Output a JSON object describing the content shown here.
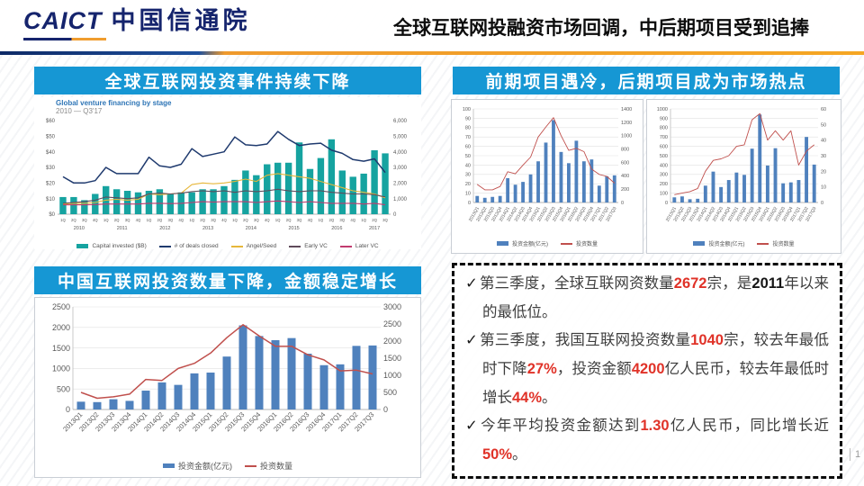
{
  "header": {
    "logo_latin": "CAICT",
    "logo_cn": "中国信通院",
    "title": "全球互联网投融资市场回调，中后期项目受到追捧"
  },
  "panels": {
    "top_left": {
      "banner": "全球互联网投资事件持续下降"
    },
    "top_right": {
      "banner": "前期项目遇冷，后期项目成为市场热点"
    },
    "bottom_left": {
      "banner": "中国互联网投资数量下降，金额稳定增长"
    }
  },
  "colors": {
    "banner_blue": "#1697d4",
    "teal_bar": "#16a3a0",
    "navy_line": "#1f3a6e",
    "yellow_line": "#e6b73a",
    "early_vc_line": "#5f4a5a",
    "later_vc_line": "#c13a6e",
    "excel_bar_blue": "#4f81bd",
    "excel_line_red": "#c0504d",
    "highlight_red": "#e03228"
  },
  "notes": {
    "bullets": [
      {
        "parts": [
          {
            "text": "第三季度，全球互联网资数量"
          },
          {
            "text": "2672",
            "style": "red"
          },
          {
            "text": "宗，是"
          },
          {
            "text": "2011",
            "style": "bold"
          },
          {
            "text": "年以来的最低位。"
          }
        ]
      },
      {
        "parts": [
          {
            "text": "第三季度，我国互联网投资数量"
          },
          {
            "text": "1040",
            "style": "red"
          },
          {
            "text": "宗，较去年最低时下降"
          },
          {
            "text": "27%",
            "style": "red"
          },
          {
            "text": "，投资金额"
          },
          {
            "text": "4200",
            "style": "red"
          },
          {
            "text": "亿人民币，较去年最低时增长"
          },
          {
            "text": "44%",
            "style": "red"
          },
          {
            "text": "。"
          }
        ]
      },
      {
        "parts": [
          {
            "text": "今年平均投资金额达到"
          },
          {
            "text": "1.30",
            "style": "red"
          },
          {
            "text": "亿人民币，同比增长近"
          },
          {
            "text": "50%",
            "style": "red"
          },
          {
            "text": "。"
          }
        ]
      }
    ]
  },
  "page_number": "1",
  "chart_data": [
    {
      "id": "global_stage",
      "type": "bar",
      "title": "Global venture financing by stage",
      "subtitle": "2010 — Q3'17",
      "categories": [
        "1Q",
        "2Q",
        "3Q",
        "4Q",
        "1Q",
        "2Q",
        "3Q",
        "4Q",
        "1Q",
        "2Q",
        "3Q",
        "4Q",
        "1Q",
        "2Q",
        "3Q",
        "4Q",
        "1Q",
        "2Q",
        "3Q",
        "4Q",
        "1Q",
        "2Q",
        "3Q",
        "4Q",
        "1Q",
        "2Q",
        "3Q",
        "4Q",
        "1Q",
        "2Q",
        "3Q"
      ],
      "years": [
        "2010",
        "2011",
        "2012",
        "2013",
        "2014",
        "2015",
        "2016",
        "2017"
      ],
      "left_axis": {
        "min": 0,
        "max": 60,
        "step": 10,
        "prefix": "$"
      },
      "right_axis": {
        "min": 0,
        "max": 6000,
        "step": 1000,
        "comma": true
      },
      "series": [
        {
          "name": "Capital invested ($B)",
          "type": "bar",
          "axis": "left",
          "color": "#16a3a0",
          "values": [
            11,
            11,
            9,
            13,
            18,
            16,
            15,
            14,
            15,
            16,
            13,
            14,
            14,
            16,
            16,
            18,
            22,
            28,
            25,
            32,
            33,
            33,
            46,
            29,
            36,
            48,
            28,
            24,
            26,
            41,
            39
          ]
        },
        {
          "name": "# of deals closed",
          "type": "line",
          "axis": "right",
          "color": "#1f3a6e",
          "values": [
            2400,
            2000,
            2000,
            2150,
            3000,
            2600,
            2600,
            2600,
            3650,
            3100,
            3000,
            3200,
            4200,
            3700,
            3850,
            4000,
            4950,
            4450,
            4400,
            4500,
            5300,
            4800,
            4400,
            4500,
            4550,
            4100,
            3900,
            3500,
            3400,
            3550,
            2672
          ]
        },
        {
          "name": "Angel/Seed",
          "type": "line",
          "axis": "right",
          "color": "#e6b73a",
          "values": [
            650,
            700,
            700,
            750,
            900,
            950,
            900,
            950,
            1300,
            1250,
            1300,
            1350,
            1900,
            2000,
            1950,
            2000,
            2100,
            2250,
            2100,
            2500,
            2600,
            2500,
            2400,
            2300,
            2100,
            1900,
            1700,
            1500,
            1400,
            1300,
            1050
          ]
        },
        {
          "name": "Early VC",
          "type": "line",
          "axis": "right",
          "color": "#5f4a5a",
          "values": [
            700,
            750,
            800,
            900,
            1100,
            1050,
            1000,
            1050,
            1300,
            1350,
            1300,
            1350,
            1450,
            1500,
            1450,
            1500,
            1400,
            1500,
            1450,
            1500,
            1600,
            1500,
            1450,
            1500,
            1500,
            1400,
            1350,
            1300,
            1300,
            1250,
            1100
          ]
        },
        {
          "name": "Later VC",
          "type": "line",
          "axis": "right",
          "color": "#c13a6e",
          "values": [
            600,
            600,
            600,
            620,
            650,
            650,
            650,
            650,
            700,
            700,
            680,
            700,
            750,
            800,
            780,
            800,
            800,
            800,
            750,
            800,
            850,
            800,
            750,
            800,
            750,
            700,
            700,
            700,
            650,
            700,
            600
          ]
        }
      ]
    },
    {
      "id": "early_stage",
      "type": "bar",
      "title": "",
      "categories": [
        "2013Q1",
        "2013Q2",
        "2013Q3",
        "2013Q4",
        "2014Q1",
        "2014Q2",
        "2014Q3",
        "2014Q4",
        "2015Q1",
        "2015Q2",
        "2015Q3",
        "2015Q4",
        "2016Q1",
        "2016Q2",
        "2016Q3",
        "2016Q4",
        "2017Q1",
        "2017Q2",
        "2017Q3"
      ],
      "left_axis": {
        "min": 0,
        "max": 100,
        "step": 10
      },
      "right_axis": {
        "min": 0,
        "max": 1400,
        "step": 200
      },
      "series": [
        {
          "name": "投资金额(亿元)",
          "type": "bar",
          "axis": "left",
          "color": "#4f81bd",
          "values": [
            7,
            5,
            6,
            7,
            26,
            19,
            22,
            30,
            44,
            64,
            88,
            54,
            42,
            66,
            44,
            46,
            18,
            28,
            29
          ]
        },
        {
          "name": "投资数量",
          "type": "line",
          "axis": "right",
          "color": "#c0504d",
          "values": [
            270,
            190,
            190,
            240,
            460,
            430,
            560,
            680,
            980,
            1130,
            1270,
            1000,
            780,
            810,
            760,
            500,
            420,
            390,
            290
          ]
        }
      ]
    },
    {
      "id": "late_stage",
      "type": "bar",
      "title": "",
      "categories": [
        "2013Q1",
        "2013Q2",
        "2013Q3",
        "2013Q4",
        "2014Q1",
        "2014Q2",
        "2014Q3",
        "2014Q4",
        "2015Q1",
        "2015Q2",
        "2015Q3",
        "2015Q4",
        "2016Q1",
        "2016Q2",
        "2016Q3",
        "2016Q4",
        "2017Q1",
        "2017Q2",
        "2017Q3"
      ],
      "left_axis": {
        "min": 0,
        "max": 1000,
        "step": 100
      },
      "right_axis": {
        "min": 0,
        "max": 60,
        "step": 10
      },
      "series": [
        {
          "name": "投资金额(亿元)",
          "type": "bar",
          "axis": "left",
          "color": "#4f81bd",
          "values": [
            55,
            65,
            35,
            40,
            180,
            330,
            165,
            240,
            320,
            295,
            575,
            940,
            395,
            580,
            205,
            215,
            240,
            700,
            405
          ]
        },
        {
          "name": "投资数量",
          "type": "line",
          "axis": "right",
          "color": "#c0504d",
          "values": [
            5,
            6,
            7,
            9,
            20,
            27,
            28,
            30,
            36,
            37,
            53,
            57,
            40,
            46,
            40,
            46,
            24,
            33,
            37
          ]
        }
      ]
    },
    {
      "id": "china",
      "type": "bar",
      "title": "",
      "categories": [
        "2013Q1",
        "2013Q2",
        "2013Q3",
        "2013Q4",
        "2014Q1",
        "2014Q2",
        "2014Q3",
        "2014Q4",
        "2015Q1",
        "2015Q2",
        "2015Q3",
        "2015Q4",
        "2016Q1",
        "2016Q2",
        "2016Q3",
        "2016Q4",
        "2017Q1",
        "2017Q2",
        "2017Q3"
      ],
      "left_axis": {
        "min": 0,
        "max": 2500,
        "step": 500
      },
      "right_axis": {
        "min": 0,
        "max": 3000,
        "step": 500
      },
      "series": [
        {
          "name": "投资金额(亿元)",
          "type": "bar",
          "axis": "left",
          "color": "#4f81bd",
          "values": [
            190,
            180,
            250,
            210,
            460,
            660,
            600,
            880,
            900,
            1290,
            2050,
            1790,
            1690,
            1740,
            1360,
            1080,
            1100,
            1550,
            1560
          ]
        },
        {
          "name": "投资数量",
          "type": "line",
          "axis": "right",
          "color": "#c0504d",
          "values": [
            500,
            330,
            370,
            450,
            880,
            850,
            1200,
            1350,
            1650,
            2100,
            2480,
            2150,
            1850,
            1850,
            1600,
            1450,
            1130,
            1150,
            1040
          ]
        }
      ]
    }
  ]
}
